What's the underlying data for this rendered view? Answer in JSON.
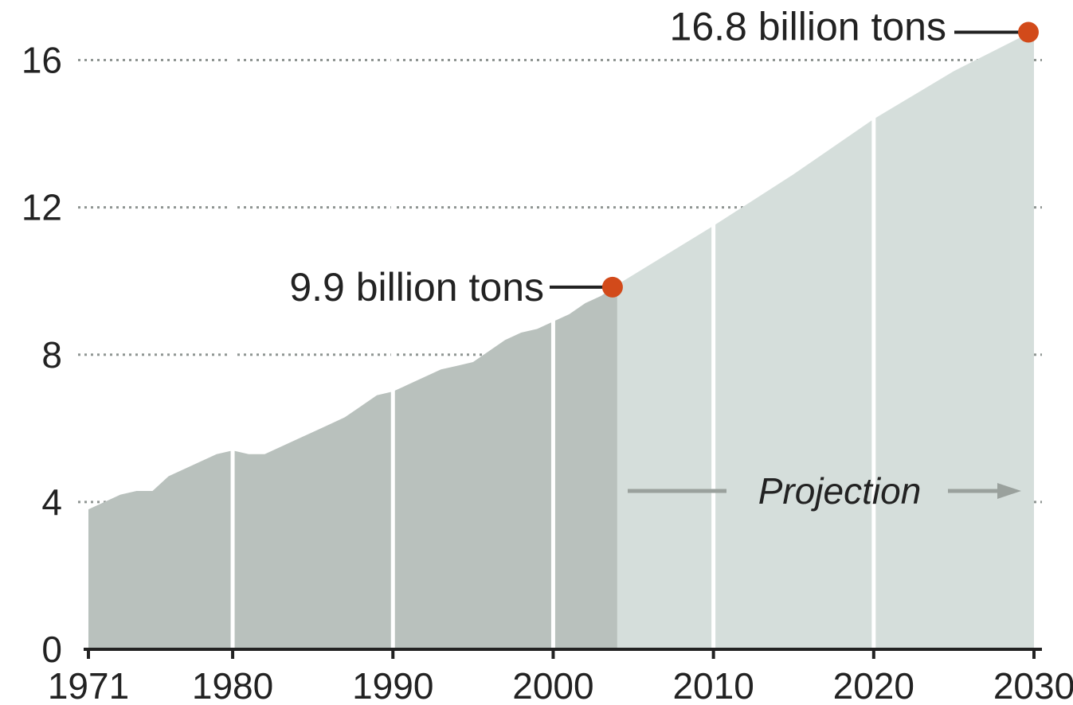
{
  "chart_data": {
    "type": "area",
    "title": "",
    "xlabel": "",
    "ylabel": "",
    "xlim": [
      1971,
      2030
    ],
    "ylim": [
      0,
      17.2
    ],
    "x_ticks": [
      1971,
      1980,
      1990,
      2000,
      2010,
      2020,
      2030
    ],
    "y_ticks": [
      0,
      4,
      8,
      12,
      16
    ],
    "x_tick_labels": [
      "1971",
      "1980",
      "1990",
      "2000",
      "2010",
      "2020",
      "2030"
    ],
    "y_tick_labels": [
      "0",
      "4",
      "8",
      "12",
      "16"
    ],
    "grid": "horizontal dotted",
    "historical_end": 2004,
    "series": [
      {
        "x": [
          1971,
          1972,
          1973,
          1974,
          1975,
          1976,
          1977,
          1978,
          1979,
          1980,
          1981,
          1982,
          1983,
          1984,
          1985,
          1986,
          1987,
          1988,
          1989,
          1990,
          1991,
          1992,
          1993,
          1994,
          1995,
          1996,
          1997,
          1998,
          1999,
          2000,
          2001,
          2002,
          2003,
          2004,
          2010,
          2015,
          2020,
          2025,
          2030
        ],
        "y": [
          3.8,
          4.0,
          4.2,
          4.3,
          4.3,
          4.7,
          4.9,
          5.1,
          5.3,
          5.4,
          5.3,
          5.3,
          5.5,
          5.7,
          5.9,
          6.1,
          6.3,
          6.6,
          6.9,
          7.0,
          7.2,
          7.4,
          7.6,
          7.7,
          7.8,
          8.1,
          8.4,
          8.6,
          8.7,
          8.9,
          9.1,
          9.4,
          9.6,
          9.9,
          11.5,
          12.9,
          14.4,
          15.7,
          16.8
        ]
      }
    ],
    "annotations": [
      {
        "x": 2004,
        "y": 9.9,
        "text": "9.9 billion tons",
        "color": "#d24a1a"
      },
      {
        "x": 2030,
        "y": 16.8,
        "text": "16.8 billion tons",
        "color": "#d24a1a"
      }
    ],
    "projection_label": "Projection",
    "colors": {
      "historical_fill": "#b9c1bd",
      "projection_fill": "#d5dedb",
      "marker": "#d24a1a",
      "grid": "#8f9592",
      "axis": "#222222",
      "arrow": "#9aa19d"
    }
  }
}
